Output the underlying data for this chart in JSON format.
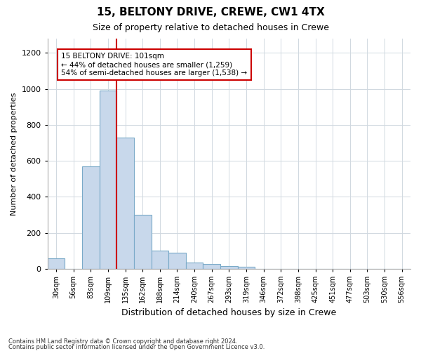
{
  "title1": "15, BELTONY DRIVE, CREWE, CW1 4TX",
  "title2": "Size of property relative to detached houses in Crewe",
  "xlabel": "Distribution of detached houses by size in Crewe",
  "ylabel": "Number of detached properties",
  "annotation_line1": "15 BELTONY DRIVE: 101sqm",
  "annotation_line2": "← 44% of detached houses are smaller (1,259)",
  "annotation_line3": "54% of semi-detached houses are larger (1,538) →",
  "footer1": "Contains HM Land Registry data © Crown copyright and database right 2024.",
  "footer2": "Contains public sector information licensed under the Open Government Licence v3.0.",
  "bin_labels": [
    "30sqm",
    "56sqm",
    "83sqm",
    "109sqm",
    "135sqm",
    "162sqm",
    "188sqm",
    "214sqm",
    "240sqm",
    "267sqm",
    "293sqm",
    "319sqm",
    "346sqm",
    "372sqm",
    "398sqm",
    "425sqm",
    "451sqm",
    "477sqm",
    "503sqm",
    "530sqm",
    "556sqm"
  ],
  "bar_values": [
    57,
    0,
    570,
    990,
    730,
    300,
    100,
    90,
    35,
    25,
    15,
    10,
    0,
    0,
    0,
    0,
    0,
    0,
    0,
    0,
    0
  ],
  "bar_color": "#c8d8eb",
  "bar_edge_color": "#7aaac8",
  "red_line_bin_index": 3,
  "red_line_color": "#cc0000",
  "ylim": [
    0,
    1280
  ],
  "yticks": [
    0,
    200,
    400,
    600,
    800,
    1000,
    1200
  ],
  "background_color": "#ffffff",
  "grid_color": "#d0d8e0",
  "annotation_box_color": "#cc0000",
  "title1_fontsize": 11,
  "title2_fontsize": 9,
  "ylabel_fontsize": 8,
  "xlabel_fontsize": 9,
  "tick_fontsize": 8,
  "xtick_fontsize": 7
}
